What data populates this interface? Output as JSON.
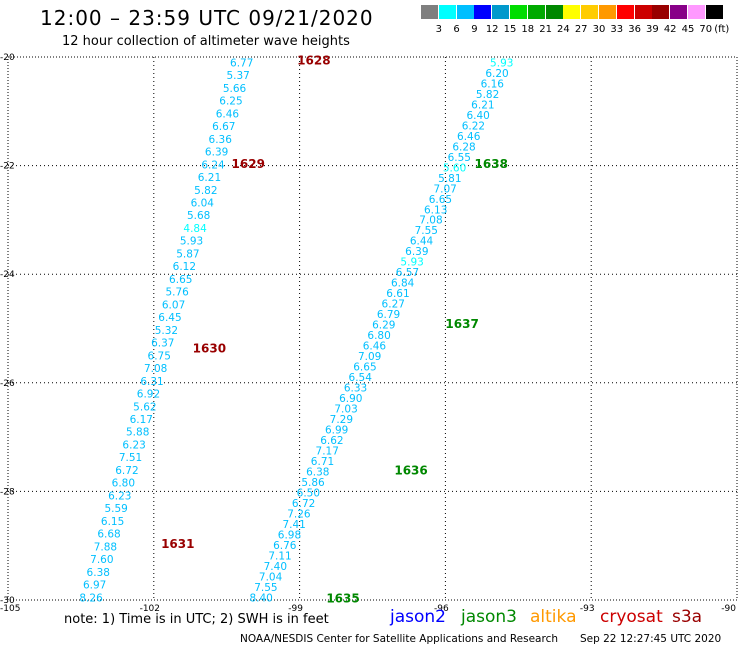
{
  "title": "12:00 – 23:59 UTC 09/21/2020",
  "subtitle": "12 hour collection of altimeter wave heights",
  "scale": {
    "unit": "(ft)",
    "colors": [
      "#7f7f7f",
      "#00ffff",
      "#00bfff",
      "#0000ff",
      "#0099cc",
      "#00dd00",
      "#00aa00",
      "#008800",
      "#ffff00",
      "#ffcc00",
      "#ff9900",
      "#ff0000",
      "#cc0000",
      "#990000",
      "#880088",
      "#ff99ff",
      "#000000"
    ],
    "labels": [
      "3",
      "6",
      "9",
      "12",
      "15",
      "18",
      "21",
      "24",
      "27",
      "30",
      "33",
      "36",
      "39",
      "42",
      "45",
      "70"
    ]
  },
  "axes": {
    "x_ticks": [
      "-105",
      "-102",
      "-99",
      "-96",
      "-93",
      "-90"
    ],
    "x_values": [
      -105,
      -102,
      -99,
      -96,
      -93,
      -90
    ],
    "y_ticks": [
      "-20",
      "-22",
      "-24",
      "-26",
      "-28",
      "-30"
    ],
    "y_values": [
      -20,
      -22,
      -24,
      -26,
      -28,
      -30
    ]
  },
  "tracks": [
    {
      "lon_start": -99.95,
      "lat_start": -20.1,
      "lon_end": -103.05,
      "lat_end": -29.95,
      "values": [
        "6.77",
        "5.37",
        "5.66",
        "6.25",
        "6.46",
        "6.67",
        "6.36",
        "6.39",
        "6.24",
        "6.21",
        "5.82",
        "6.04",
        "5.68",
        "4.84",
        "5.93",
        "5.87",
        "6.12",
        "6.65",
        "5.76",
        "6.07",
        "6.45",
        "5.32",
        "6.37",
        "6.75",
        "7.08",
        "6.31",
        "6.92",
        "5.62",
        "6.17",
        "5.88",
        "6.23",
        "7.51",
        "6.72",
        "6.80",
        "6.23",
        "5.59",
        "6.15",
        "6.68",
        "7.88",
        "7.60",
        "6.38",
        "6.97",
        "8.26"
      ],
      "colors": [
        "#00bfff",
        "#00bfff",
        "#00bfff",
        "#00bfff",
        "#00bfff",
        "#00bfff",
        "#00bfff",
        "#00bfff",
        "#00bfff",
        "#00bfff",
        "#00bfff",
        "#00bfff",
        "#00bfff",
        "#00ffff",
        "#00bfff",
        "#00bfff",
        "#00bfff",
        "#00bfff",
        "#00bfff",
        "#00bfff",
        "#00bfff",
        "#00bfff",
        "#00bfff",
        "#00bfff",
        "#00bfff",
        "#00bfff",
        "#00bfff",
        "#00bfff",
        "#00bfff",
        "#00bfff",
        "#00bfff",
        "#00bfff",
        "#00bfff",
        "#00bfff",
        "#00bfff",
        "#00bfff",
        "#00bfff",
        "#00bfff",
        "#00bfff",
        "#00bfff",
        "#00bfff",
        "#00bfff",
        "#00bfff"
      ]
    },
    {
      "lon_start": -94.6,
      "lat_start": -20.1,
      "lon_end": -99.55,
      "lat_end": -29.95,
      "values": [
        "5.93",
        "6.20",
        "6.16",
        "5.82",
        "6.21",
        "6.40",
        "6.22",
        "6.46",
        "6.28",
        "6.55",
        "5.60",
        "5.81",
        "7.07",
        "6.65",
        "6.13",
        "7.08",
        "7.55",
        "6.44",
        "6.39",
        "5.93",
        "6.57",
        "6.84",
        "6.61",
        "6.27",
        "6.79",
        "6.29",
        "6.80",
        "6.46",
        "7.09",
        "6.65",
        "6.54",
        "6.33",
        "6.90",
        "7.03",
        "7.29",
        "6.99",
        "6.62",
        "7.17",
        "6.71",
        "6.38",
        "5.86",
        "6.50",
        "6.72",
        "7.26",
        "7.41",
        "6.98",
        "6.76",
        "7.11",
        "7.40",
        "7.04",
        "7.55",
        "8.40"
      ],
      "colors": [
        "#00ffff",
        "#00bfff",
        "#00bfff",
        "#00bfff",
        "#00bfff",
        "#00bfff",
        "#00bfff",
        "#00bfff",
        "#00bfff",
        "#00bfff",
        "#00ffff",
        "#00bfff",
        "#00bfff",
        "#00bfff",
        "#00bfff",
        "#00bfff",
        "#00bfff",
        "#00bfff",
        "#00bfff",
        "#00ffff",
        "#00bfff",
        "#00bfff",
        "#00bfff",
        "#00bfff",
        "#00bfff",
        "#00bfff",
        "#00bfff",
        "#00bfff",
        "#00bfff",
        "#00bfff",
        "#00bfff",
        "#00bfff",
        "#00bfff",
        "#00bfff",
        "#00bfff",
        "#00bfff",
        "#00bfff",
        "#00bfff",
        "#00bfff",
        "#00bfff",
        "#00bfff",
        "#00bfff",
        "#00bfff",
        "#00bfff",
        "#00bfff",
        "#00bfff",
        "#00bfff",
        "#00bfff",
        "#00bfff",
        "#00bfff",
        "#00bfff",
        "#00bfff"
      ]
    }
  ],
  "passes": [
    {
      "label": "1628",
      "lon": -99.05,
      "lat": -20.05,
      "color": "#990000"
    },
    {
      "label": "1629",
      "lon": -100.4,
      "lat": -21.95,
      "color": "#990000"
    },
    {
      "label": "1630",
      "lon": -101.2,
      "lat": -25.35,
      "color": "#990000"
    },
    {
      "label": "1631",
      "lon": -101.85,
      "lat": -28.95,
      "color": "#990000"
    },
    {
      "label": "1638",
      "lon": -95.4,
      "lat": -21.95,
      "color": "#008800"
    },
    {
      "label": "1637",
      "lon": -96.0,
      "lat": -24.9,
      "color": "#008800"
    },
    {
      "label": "1636",
      "lon": -97.05,
      "lat": -27.6,
      "color": "#008800"
    },
    {
      "label": "1635",
      "lon": -98.45,
      "lat": -29.95,
      "color": "#008800"
    }
  ],
  "note": "note: 1) Time is in UTC; 2) SWH is in feet",
  "legend": [
    {
      "label": "jason2",
      "color": "#0000ff"
    },
    {
      "label": "jason3",
      "color": "#008800"
    },
    {
      "label": "altika",
      "color": "#ff9900"
    },
    {
      "label": "cryosat",
      "color": "#cc0000"
    },
    {
      "label": "s3a",
      "color": "#990000"
    }
  ],
  "footer": {
    "credit": "NOAA/NESDIS Center for Satellite Applications and Research",
    "timestamp": "Sep 22 12:27:45 UTC 2020"
  }
}
